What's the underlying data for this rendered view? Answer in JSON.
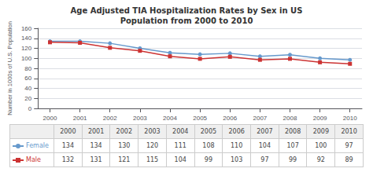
{
  "chart_data": {
    "type": "line",
    "title": "Age Adjusted TIA Hospitalization Rates by Sex in US\nPopulation from 2000 to 2010",
    "ylabel": "Number in 1000s of U.S. Population",
    "x": [
      2000,
      2001,
      2002,
      2003,
      2004,
      2005,
      2006,
      2007,
      2008,
      2009,
      2010
    ],
    "series": [
      {
        "name": "Female",
        "color": "#6699CC",
        "marker": "circle",
        "values": [
          134,
          134,
          130,
          120,
          111,
          108,
          110,
          104,
          107,
          100,
          97
        ]
      },
      {
        "name": "Male",
        "color": "#CC3333",
        "marker": "square",
        "values": [
          132,
          131,
          121,
          115,
          104,
          99,
          103,
          97,
          99,
          92,
          89
        ]
      }
    ],
    "xlim": [
      1999.6,
      2010.4
    ],
    "xticks": [
      2000,
      2001,
      2002,
      2003,
      2004,
      2005,
      2006,
      2007,
      2008,
      2009,
      2010
    ],
    "ylim": [
      0,
      160
    ],
    "yticks": [
      0,
      20,
      40,
      60,
      80,
      100,
      120,
      140,
      160
    ],
    "grid": true
  }
}
